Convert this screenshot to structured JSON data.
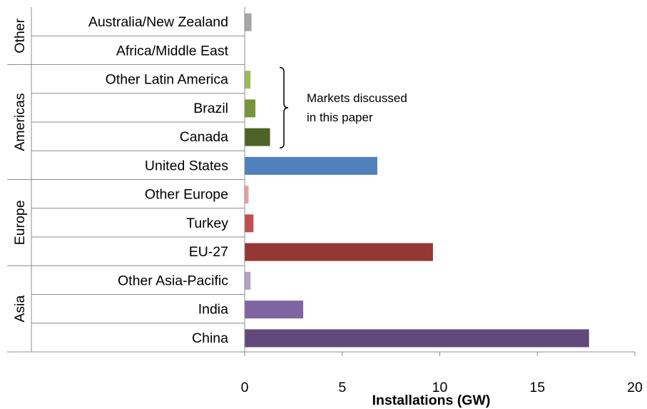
{
  "chart_data": {
    "type": "bar",
    "orientation": "horizontal",
    "xlabel": "Installations (GW)",
    "xlim": [
      0,
      20
    ],
    "xticks": [
      0,
      5,
      10,
      15,
      20
    ],
    "categories": [
      {
        "label": "Australia/New Zealand",
        "group": "Other",
        "value": 0.35,
        "color": "#a6a6a6"
      },
      {
        "label": "Africa/Middle East",
        "group": "Other",
        "value": 0.0,
        "color": "#a6a6a6"
      },
      {
        "label": "Other Latin America",
        "group": "Americas",
        "value": 0.3,
        "color": "#9bbb59"
      },
      {
        "label": "Brazil",
        "group": "Americas",
        "value": 0.55,
        "color": "#77933c"
      },
      {
        "label": "Canada",
        "group": "Americas",
        "value": 1.3,
        "color": "#4f6228"
      },
      {
        "label": "United States",
        "group": "Americas",
        "value": 6.8,
        "color": "#4f81bd"
      },
      {
        "label": "Other Europe",
        "group": "Europe",
        "value": 0.2,
        "color": "#e6a0a0"
      },
      {
        "label": "Turkey",
        "group": "Europe",
        "value": 0.45,
        "color": "#c0504d"
      },
      {
        "label": "EU-27",
        "group": "Europe",
        "value": 9.65,
        "color": "#953735"
      },
      {
        "label": "Other Asia-Pacific",
        "group": "Asia",
        "value": 0.3,
        "color": "#b3a2c7"
      },
      {
        "label": "India",
        "group": "Asia",
        "value": 3.0,
        "color": "#8064a2"
      },
      {
        "label": "China",
        "group": "Asia",
        "value": 17.65,
        "color": "#604a7b"
      }
    ],
    "groups": [
      "Other",
      "Americas",
      "Europe",
      "Asia"
    ],
    "annotation": {
      "lines": [
        "Markets discussed",
        "in this paper"
      ],
      "brackets": [
        "Other Latin America",
        "Brazil",
        "Canada"
      ]
    }
  }
}
